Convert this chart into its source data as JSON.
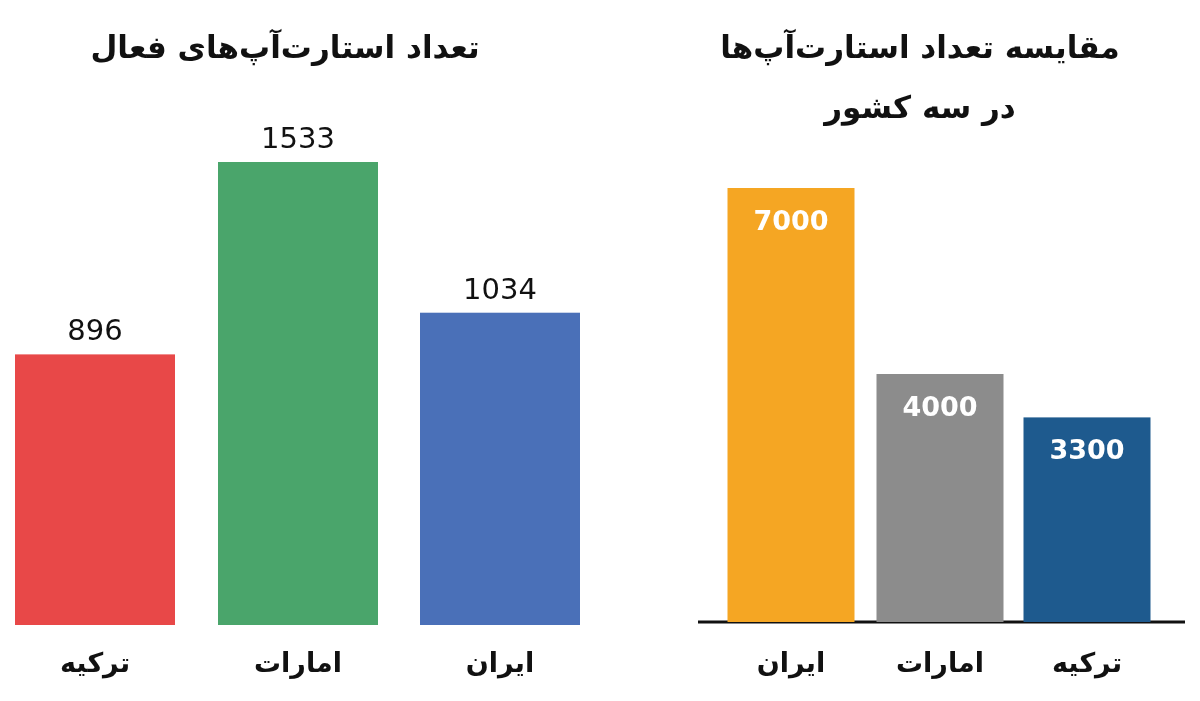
{
  "chart_data": [
    {
      "type": "bar",
      "title": "تعداد استارت‌آپ‌های فعال",
      "categories": [
        "ترکیه",
        "امارات",
        "ایران"
      ],
      "values": [
        896,
        1533,
        1034
      ],
      "colors": [
        "#e84848",
        "#4aa56b",
        "#4a70b8"
      ],
      "data_labels": true,
      "tick_labels": "x"
    },
    {
      "type": "bar",
      "title": "مقایسه تعداد استارت‌آپ‌ها",
      "subtitle": "در سه کشور",
      "categories": [
        "ایران",
        "امارات",
        "ترکیه"
      ],
      "values": [
        7000,
        4000,
        3300
      ],
      "colors": [
        "#f5a623",
        "#8c8c8c",
        "#1e5a8e"
      ],
      "data_labels": true,
      "tick_labels": "x"
    }
  ]
}
